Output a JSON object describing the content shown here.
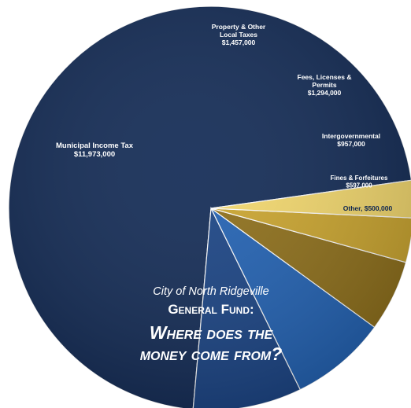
{
  "chart_data": {
    "type": "pie",
    "title": {
      "line1": "City of North Ridgeville",
      "line2": "General Fund:",
      "line3": "Where does the",
      "line4": "money come from?"
    },
    "slices": [
      {
        "label": "Municipal Income Tax",
        "value_text": "$11,973,000",
        "value": 11973000,
        "color": "#0b2450"
      },
      {
        "label": "Property & Other Local Taxes",
        "value_text": "$1,457,000",
        "value": 1457000,
        "color": "#123d80"
      },
      {
        "label": "Fees, Licenses & Permits",
        "value_text": "$1,294,000",
        "value": 1294000,
        "color": "#1a5cb0"
      },
      {
        "label": "Intergovernmental",
        "value_text": "$957,000",
        "value": 957000,
        "color": "#8a6a12"
      },
      {
        "label": "Fines & Forfeitures",
        "value_text": "$597,000",
        "value": 597000,
        "color": "#c9a227"
      },
      {
        "label": "Other",
        "value_text": "$500,000",
        "value": 500000,
        "color": "#f3d768"
      }
    ]
  }
}
